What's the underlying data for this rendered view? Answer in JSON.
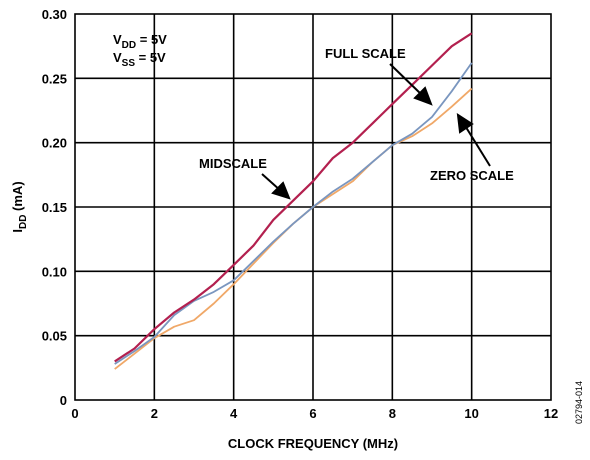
{
  "chart_data": {
    "type": "line",
    "xlabel": "CLOCK FREQUENCY (MHz)",
    "ylabel": {
      "main": "I",
      "sub": "DD",
      "rest": " (mA)"
    },
    "xlim": [
      0,
      12
    ],
    "ylim": [
      0,
      0.3
    ],
    "x_ticks": [
      "0",
      "2",
      "4",
      "6",
      "8",
      "10",
      "12"
    ],
    "y_ticks": [
      "0",
      "0.05",
      "0.10",
      "0.15",
      "0.20",
      "0.25",
      "0.30"
    ],
    "grid": true,
    "legend": "none",
    "series": [
      {
        "name": "MIDSCALE",
        "color": "#b3204f",
        "x": [
          1.0,
          1.5,
          2.0,
          2.5,
          3.0,
          3.5,
          4.0,
          4.5,
          5.0,
          5.5,
          6.0,
          6.5,
          7.0,
          7.5,
          8.0,
          8.5,
          9.0,
          9.5,
          10.0
        ],
        "y": [
          0.03,
          0.04,
          0.055,
          0.068,
          0.078,
          0.09,
          0.105,
          0.12,
          0.14,
          0.155,
          0.17,
          0.188,
          0.2,
          0.215,
          0.23,
          0.245,
          0.26,
          0.275,
          0.285
        ]
      },
      {
        "name": "FULL SCALE",
        "color": "#7a96bf",
        "x": [
          1.0,
          1.5,
          2.0,
          2.5,
          3.0,
          3.5,
          4.0,
          4.5,
          5.0,
          5.5,
          6.0,
          6.5,
          7.0,
          7.5,
          8.0,
          8.5,
          9.0,
          9.5,
          10.0
        ],
        "y": [
          0.028,
          0.038,
          0.049,
          0.066,
          0.077,
          0.084,
          0.093,
          0.108,
          0.123,
          0.137,
          0.15,
          0.162,
          0.172,
          0.185,
          0.198,
          0.207,
          0.22,
          0.24,
          0.262
        ]
      },
      {
        "name": "ZERO SCALE",
        "color": "#f0a868",
        "x": [
          1.0,
          1.5,
          2.0,
          2.5,
          3.0,
          3.5,
          4.0,
          4.5,
          5.0,
          5.5,
          6.0,
          6.5,
          7.0,
          7.5,
          8.0,
          8.5,
          9.0,
          9.5,
          10.0
        ],
        "y": [
          0.024,
          0.036,
          0.048,
          0.057,
          0.062,
          0.075,
          0.09,
          0.106,
          0.122,
          0.137,
          0.15,
          0.16,
          0.17,
          0.185,
          0.198,
          0.205,
          0.215,
          0.228,
          0.242
        ]
      }
    ],
    "conditions": [
      {
        "main": "V",
        "sub": "DD",
        "rest": " = 5V"
      },
      {
        "main": "V",
        "sub": "SS",
        "rest": " = 5V"
      }
    ],
    "annotations": [
      "MIDSCALE",
      "FULL SCALE",
      "ZERO SCALE"
    ],
    "figure_id": "02794-014"
  }
}
